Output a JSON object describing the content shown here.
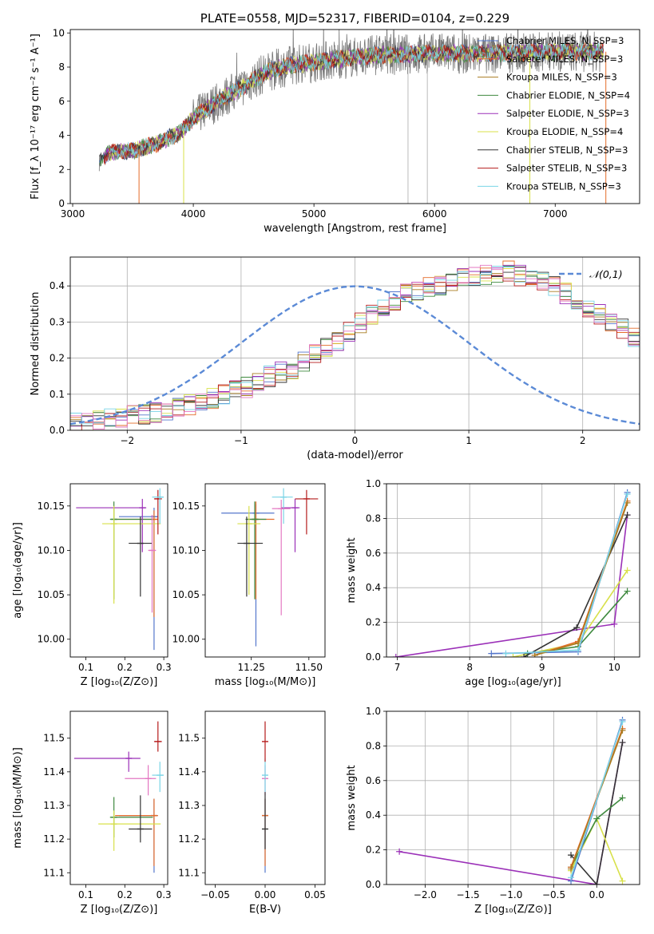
{
  "chart_data": [
    {
      "type": "line",
      "title": "PLATE=0558, MJD=52317, FIBERID=0104, z=0.229",
      "xlabel": "wavelength [Angstrom, rest frame]",
      "ylabel": "Flux [f_λ 10⁻¹⁷ erg cm⁻² s⁻¹ A⁻¹]",
      "xlim": [
        2980,
        7700
      ],
      "ylim": [
        0,
        10.2
      ],
      "xticks": [
        "3000",
        "4000",
        "5000",
        "6000",
        "7000"
      ],
      "yticks": [
        "0",
        "2",
        "4",
        "6",
        "8",
        "10"
      ],
      "legend_position": "right",
      "grid": false,
      "series": [
        {
          "name": "Chabrier MILES, N_SSP=3",
          "color": "#5577cc"
        },
        {
          "name": "Salpeter MILES, N_SSP=3",
          "color": "#e46c2a"
        },
        {
          "name": "Kroupa MILES, N_SSP=3",
          "color": "#a97c20"
        },
        {
          "name": "Chabrier ELODIE, N_SSP=4",
          "color": "#3f8a3f"
        },
        {
          "name": "Salpeter ELODIE, N_SSP=3",
          "color": "#9b30b8"
        },
        {
          "name": "Kroupa ELODIE, N_SSP=4",
          "color": "#d8e04a"
        },
        {
          "name": "Chabrier STELIB, N_SSP=3",
          "color": "#333333"
        },
        {
          "name": "Salpeter STELIB, N_SSP=3",
          "color": "#b51c1c"
        },
        {
          "name": "Kroupa STELIB, N_SSP=3",
          "color": "#7ad4e6"
        }
      ],
      "spectrum_model": {
        "start": 3220,
        "end": 7400,
        "anchors": [
          [
            3220,
            2.4
          ],
          [
            3300,
            3.0
          ],
          [
            3500,
            3.1
          ],
          [
            3700,
            3.5
          ],
          [
            3900,
            4.2
          ],
          [
            4000,
            5.0
          ],
          [
            4200,
            6.0
          ],
          [
            4400,
            6.8
          ],
          [
            4600,
            7.7
          ],
          [
            4800,
            8.1
          ],
          [
            5000,
            8.3
          ],
          [
            5500,
            8.7
          ],
          [
            6000,
            8.8
          ],
          [
            6500,
            8.8
          ],
          [
            7000,
            8.9
          ],
          [
            7400,
            8.9
          ]
        ]
      }
    },
    {
      "type": "histogram",
      "xlabel": "(data-model)/error",
      "ylabel": "Normed distribution",
      "xlim": [
        -2.5,
        2.5
      ],
      "ylim": [
        0,
        0.48
      ],
      "xticks": [
        "−2",
        "−1",
        "0",
        "1",
        "2"
      ],
      "yticks": [
        "0.0",
        "0.1",
        "0.2",
        "0.3",
        "0.4"
      ],
      "grid": true,
      "legend": [
        "𝒩(0,1)"
      ],
      "bin_width": 0.1,
      "base_counts": [
        0.02,
        0.022,
        0.025,
        0.03,
        0.035,
        0.04,
        0.045,
        0.05,
        0.055,
        0.06,
        0.07,
        0.08,
        0.09,
        0.1,
        0.11,
        0.12,
        0.13,
        0.15,
        0.16,
        0.17,
        0.19,
        0.21,
        0.23,
        0.25,
        0.27,
        0.3,
        0.32,
        0.34,
        0.36,
        0.38,
        0.39,
        0.4,
        0.4,
        0.41,
        0.42,
        0.43,
        0.43,
        0.43,
        0.44,
        0.43,
        0.42,
        0.41,
        0.4,
        0.38,
        0.36,
        0.34,
        0.32,
        0.3,
        0.28,
        0.26
      ]
    },
    {
      "type": "scatter",
      "xlabel": "Z [log₁₀(Z/Z⊙)]",
      "ylabel": "age [log₁₀(age/yr)]",
      "xlim": [
        0.06,
        0.31
      ],
      "ylim": [
        9.98,
        10.175
      ],
      "xticks": [
        "0.1",
        "0.2",
        "0.3"
      ],
      "yticks": [
        "10.00",
        "10.05",
        "10.10",
        "10.15"
      ],
      "points": [
        {
          "x": 0.275,
          "y": 10.138,
          "xerr": [
            0.09,
            0.01
          ],
          "yerr": [
            0.15,
            0.01
          ],
          "color": "#5577cc"
        },
        {
          "x": 0.275,
          "y": 10.135,
          "xerr": [
            0.1,
            0.01
          ],
          "yerr": [
            0.11,
            0.01
          ],
          "color": "#e46c2a"
        },
        {
          "x": 0.172,
          "y": 10.135,
          "xerr": [
            0.01,
            0.1
          ],
          "yerr": [
            0.09,
            0.02
          ],
          "color": "#3f8a3f"
        },
        {
          "x": 0.245,
          "y": 10.148,
          "xerr": [
            0.17,
            0.01
          ],
          "yerr": [
            0.05,
            0.01
          ],
          "color": "#9b30b8"
        },
        {
          "x": 0.172,
          "y": 10.13,
          "xerr": [
            0.03,
            0.12
          ],
          "yerr": [
            0.09,
            0.02
          ],
          "color": "#d8e04a"
        },
        {
          "x": 0.24,
          "y": 10.108,
          "xerr": [
            0.03,
            0.03
          ],
          "yerr": [
            0.06,
            0.03
          ],
          "color": "#333333"
        },
        {
          "x": 0.285,
          "y": 10.158,
          "xerr": [
            0.01,
            0.01
          ],
          "yerr": [
            0.04,
            0.01
          ],
          "color": "#b51c1c"
        },
        {
          "x": 0.29,
          "y": 10.16,
          "xerr": [
            0.02,
            0.01
          ],
          "yerr": [
            0.03,
            0.01
          ],
          "color": "#7ad4e6"
        },
        {
          "x": 0.27,
          "y": 10.1,
          "xerr": [
            0.01,
            0.01
          ],
          "yerr": [
            0.07,
            0.04
          ],
          "color": "#e377c2"
        }
      ]
    },
    {
      "type": "scatter",
      "xlabel": "mass [log₁₀(M/M⊙)]",
      "xlim": [
        11.05,
        11.57
      ],
      "ylim": [
        9.98,
        10.175
      ],
      "xticks": [
        "11.25",
        "11.50"
      ],
      "yticks": [
        "10.00",
        "10.05",
        "10.10",
        "10.15"
      ],
      "points": [
        {
          "x": 11.27,
          "y": 10.142,
          "xerr": [
            0.15,
            0.08
          ],
          "yerr": [
            0.15,
            0.01
          ],
          "color": "#5577cc"
        },
        {
          "x": 11.27,
          "y": 10.135,
          "xerr": [
            0.04,
            0.08
          ],
          "yerr": [
            0.09,
            0.02
          ],
          "color": "#e46c2a"
        },
        {
          "x": 11.265,
          "y": 10.135,
          "xerr": [
            0.04,
            0.05
          ],
          "yerr": [
            0.09,
            0.02
          ],
          "color": "#3f8a3f"
        },
        {
          "x": 11.44,
          "y": 10.148,
          "xerr": [
            0.06,
            0.02
          ],
          "yerr": [
            0.05,
            0.01
          ],
          "color": "#9b30b8"
        },
        {
          "x": 11.24,
          "y": 10.13,
          "xerr": [
            0.05,
            0.05
          ],
          "yerr": [
            0.08,
            0.02
          ],
          "color": "#d8e04a"
        },
        {
          "x": 11.23,
          "y": 10.108,
          "xerr": [
            0.04,
            0.07
          ],
          "yerr": [
            0.06,
            0.03
          ],
          "color": "#333333"
        },
        {
          "x": 11.49,
          "y": 10.158,
          "xerr": [
            0.05,
            0.05
          ],
          "yerr": [
            0.04,
            0.01
          ],
          "color": "#b51c1c"
        },
        {
          "x": 11.39,
          "y": 10.16,
          "xerr": [
            0.05,
            0.04
          ],
          "yerr": [
            0.03,
            0.01
          ],
          "color": "#7ad4e6"
        },
        {
          "x": 11.38,
          "y": 10.147,
          "xerr": [
            0.04,
            0.04
          ],
          "yerr": [
            0.12,
            0.01
          ],
          "color": "#e377c2"
        }
      ]
    },
    {
      "type": "line",
      "xlabel": "age [log₁₀(age/yr)]",
      "ylabel": "mass weight",
      "xlim": [
        6.85,
        10.35
      ],
      "ylim": [
        0,
        1.0
      ],
      "xticks": [
        "7",
        "8",
        "9",
        "10"
      ],
      "yticks": [
        "0.0",
        "0.2",
        "0.4",
        "0.6",
        "0.8",
        "1.0"
      ],
      "grid": true,
      "series": [
        {
          "color": "#9b30b8",
          "x": [
            6.98,
            10.0,
            10.18
          ],
          "y": [
            0.0,
            0.19,
            0.82
          ]
        },
        {
          "color": "#d8e04a",
          "x": [
            8.6,
            9.5,
            10.18
          ],
          "y": [
            0.0,
            0.08,
            0.5
          ]
        },
        {
          "color": "#3f8a3f",
          "x": [
            8.8,
            9.5,
            10.18
          ],
          "y": [
            0.02,
            0.06,
            0.38
          ]
        },
        {
          "color": "#333333",
          "x": [
            8.75,
            9.48,
            10.18
          ],
          "y": [
            0.0,
            0.17,
            0.82
          ]
        },
        {
          "color": "#5577cc",
          "x": [
            8.3,
            9.5,
            10.18
          ],
          "y": [
            0.02,
            0.03,
            0.95
          ]
        },
        {
          "color": "#e46c2a",
          "x": [
            8.9,
            9.5,
            10.18
          ],
          "y": [
            0.01,
            0.09,
            0.9
          ]
        },
        {
          "color": "#a97c20",
          "x": [
            8.9,
            9.5,
            10.18
          ],
          "y": [
            0.01,
            0.08,
            0.89
          ]
        },
        {
          "color": "#7ad4e6",
          "x": [
            8.5,
            9.5,
            10.18
          ],
          "y": [
            0.02,
            0.04,
            0.94
          ]
        }
      ]
    },
    {
      "type": "scatter",
      "xlabel": "Z [log₁₀(Z/Z⊙)]",
      "ylabel": "mass [log₁₀(M/M⊙)]",
      "xlim": [
        0.06,
        0.31
      ],
      "ylim": [
        11.065,
        11.58
      ],
      "xticks": [
        "0.1",
        "0.2",
        "0.3"
      ],
      "yticks": [
        "11.1",
        "11.2",
        "11.3",
        "11.4",
        "11.5"
      ],
      "points": [
        {
          "x": 0.275,
          "y": 11.27,
          "xerr": [
            0.09,
            0.01
          ],
          "yerr": [
            0.17,
            0.05
          ],
          "color": "#5577cc"
        },
        {
          "x": 0.275,
          "y": 11.27,
          "xerr": [
            0.1,
            0.01
          ],
          "yerr": [
            0.15,
            0.05
          ],
          "color": "#e46c2a"
        },
        {
          "x": 0.172,
          "y": 11.265,
          "xerr": [
            0.01,
            0.1
          ],
          "yerr": [
            0.06,
            0.06
          ],
          "color": "#3f8a3f"
        },
        {
          "x": 0.21,
          "y": 11.44,
          "xerr": [
            0.14,
            0.03
          ],
          "yerr": [
            0.04,
            0.02
          ],
          "color": "#9b30b8"
        },
        {
          "x": 0.172,
          "y": 11.245,
          "xerr": [
            0.04,
            0.12
          ],
          "yerr": [
            0.08,
            0.04
          ],
          "color": "#d8e04a"
        },
        {
          "x": 0.24,
          "y": 11.23,
          "xerr": [
            0.03,
            0.03
          ],
          "yerr": [
            0.04,
            0.1
          ],
          "color": "#333333"
        },
        {
          "x": 0.285,
          "y": 11.49,
          "xerr": [
            0.01,
            0.01
          ],
          "yerr": [
            0.03,
            0.06
          ],
          "color": "#b51c1c"
        },
        {
          "x": 0.29,
          "y": 11.39,
          "xerr": [
            0.02,
            0.01
          ],
          "yerr": [
            0.05,
            0.04
          ],
          "color": "#7ad4e6"
        },
        {
          "x": 0.26,
          "y": 11.38,
          "xerr": [
            0.06,
            0.02
          ],
          "yerr": [
            0.05,
            0.04
          ],
          "color": "#e377c2"
        }
      ]
    },
    {
      "type": "scatter",
      "xlabel": "E(B-V)",
      "xlim": [
        -0.06,
        0.06
      ],
      "ylim": [
        11.065,
        11.58
      ],
      "xticks": [
        "−0.05",
        "0.00",
        "0.05"
      ],
      "yticks": [
        "11.1",
        "11.2",
        "11.3",
        "11.4",
        "11.5"
      ],
      "points": [
        {
          "x": 0.0,
          "y": 11.27,
          "yerr": [
            0.17,
            0.05
          ],
          "color": "#5577cc"
        },
        {
          "x": 0.0,
          "y": 11.27,
          "yerr": [
            0.15,
            0.05
          ],
          "color": "#e46c2a"
        },
        {
          "x": 0.0,
          "y": 11.38,
          "yerr": [
            0.05,
            0.04
          ],
          "color": "#e377c2"
        },
        {
          "x": 0.0,
          "y": 11.39,
          "yerr": [
            0.05,
            0.05
          ],
          "color": "#7ad4e6"
        },
        {
          "x": 0.0,
          "y": 11.49,
          "yerr": [
            0.06,
            0.06
          ],
          "color": "#b51c1c"
        },
        {
          "x": 0.0,
          "y": 11.23,
          "yerr": [
            0.06,
            0.11
          ],
          "color": "#333333"
        }
      ]
    },
    {
      "type": "line",
      "xlabel": "Z [log₁₀(Z/Z⊙)]",
      "ylabel": "mass weight",
      "xlim": [
        -2.45,
        0.5
      ],
      "ylim": [
        0,
        1.0
      ],
      "xticks": [
        "−2.0",
        "−1.5",
        "−1.0",
        "−0.5",
        "0.0"
      ],
      "yticks": [
        "0.0",
        "0.2",
        "0.4",
        "0.6",
        "0.8",
        "1.0"
      ],
      "grid": true,
      "series": [
        {
          "color": "#9b30b8",
          "x": [
            -2.3,
            0.0,
            0.3
          ],
          "y": [
            0.19,
            0.0,
            0.82
          ]
        },
        {
          "color": "#333333",
          "x": [
            -0.3,
            0.0,
            0.3
          ],
          "y": [
            0.17,
            0.0,
            0.82
          ]
        },
        {
          "color": "#d8e04a",
          "x": [
            -0.3,
            0.0,
            0.3
          ],
          "y": [
            0.08,
            0.38,
            0.02
          ]
        },
        {
          "color": "#3f8a3f",
          "x": [
            -0.3,
            0.0,
            0.3
          ],
          "y": [
            0.1,
            0.38,
            0.5
          ]
        },
        {
          "color": "#5577cc",
          "x": [
            -0.3,
            0.3
          ],
          "y": [
            0.02,
            0.95
          ]
        },
        {
          "color": "#e46c2a",
          "x": [
            -0.3,
            0.3
          ],
          "y": [
            0.1,
            0.9
          ]
        },
        {
          "color": "#a97c20",
          "x": [
            -0.3,
            0.3
          ],
          "y": [
            0.09,
            0.89
          ]
        },
        {
          "color": "#7ad4e6",
          "x": [
            -0.3,
            0.3
          ],
          "y": [
            0.04,
            0.94
          ]
        }
      ]
    }
  ]
}
